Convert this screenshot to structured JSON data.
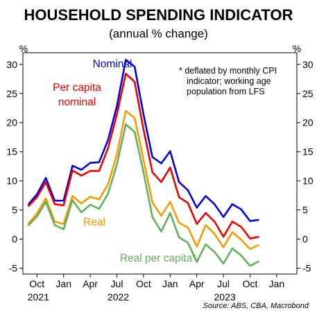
{
  "chart_data": {
    "type": "line",
    "title": "HOUSEHOLD SPENDING INDICATOR",
    "subtitle": "(annual % change)",
    "y_unit_left": "%",
    "y_unit_right": "%",
    "ylim": [
      -6,
      32
    ],
    "yticks": [
      -5,
      0,
      5,
      10,
      15,
      20,
      25,
      30
    ],
    "x_tick_labels": [
      "Oct",
      "Jan",
      "Apr",
      "Jul",
      "Oct",
      "Jan",
      "Apr",
      "Jul",
      "Oct",
      "Jan"
    ],
    "year_labels": [
      "2021",
      "2022",
      "2023"
    ],
    "grid": false,
    "note": [
      "*  deflated by monthly CPI",
      "indicator; working age",
      "population from LFS"
    ],
    "source": "Source: ABS, CBA, Macrobond",
    "x": [
      "2021-09",
      "2021-10",
      "2021-11",
      "2021-12",
      "2022-01",
      "2022-02",
      "2022-03",
      "2022-04",
      "2022-05",
      "2022-06",
      "2022-07",
      "2022-08",
      "2022-09",
      "2022-10",
      "2022-11",
      "2022-12",
      "2023-01",
      "2023-02",
      "2023-03",
      "2023-04",
      "2023-05",
      "2023-06",
      "2023-07",
      "2023-08",
      "2023-09",
      "2023-10",
      "2023-11"
    ],
    "series": [
      {
        "name": "Nominal",
        "color": "#0000dd",
        "values": [
          5.9,
          7.7,
          10.5,
          6.6,
          6.6,
          12.6,
          11.9,
          13.1,
          13.2,
          17.0,
          22.8,
          30.8,
          29.6,
          21.4,
          14.1,
          13.0,
          15.1,
          9.8,
          8.4,
          5.4,
          7.4,
          6.0,
          3.8,
          6.0,
          5.1,
          3.1,
          3.3
        ]
      },
      {
        "name": "Per capita nominal",
        "color": "#ee0000",
        "values": [
          5.6,
          7.2,
          9.8,
          6.0,
          5.8,
          11.8,
          10.9,
          11.7,
          11.7,
          15.6,
          21.4,
          28.4,
          27.0,
          18.8,
          11.5,
          9.8,
          12.3,
          7.2,
          6.2,
          2.6,
          4.5,
          3.0,
          0.4,
          3.0,
          2.1,
          0.1,
          0.4
        ]
      },
      {
        "name": "Real",
        "color": "#f59b00",
        "values": [
          2.6,
          4.4,
          7.0,
          3.0,
          2.6,
          7.4,
          6.1,
          7.3,
          6.8,
          9.4,
          14.5,
          22.0,
          20.8,
          13.6,
          6.3,
          4.0,
          6.4,
          2.8,
          2.0,
          -1.3,
          2.4,
          0.9,
          -1.4,
          1.2,
          -0.1,
          -1.7,
          -1.0
        ]
      },
      {
        "name": "Real per capita*",
        "color": "#5fb05a",
        "values": [
          2.3,
          3.9,
          6.4,
          2.4,
          1.7,
          6.7,
          4.6,
          5.9,
          5.2,
          7.8,
          12.8,
          19.7,
          18.4,
          11.5,
          3.8,
          1.3,
          4.5,
          0.3,
          -0.6,
          -3.9,
          -0.9,
          -2.2,
          -4.2,
          -1.6,
          -2.8,
          -4.6,
          -3.8
        ]
      }
    ],
    "series_labels": [
      "Nominal",
      "Per capita",
      "nominal",
      "Real",
      "Real per capita*"
    ]
  }
}
